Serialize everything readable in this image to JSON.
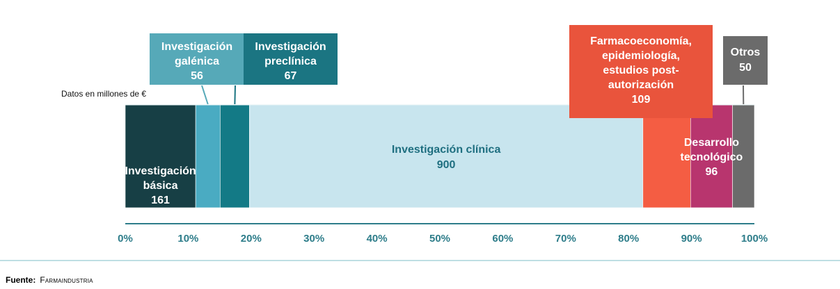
{
  "unit_note": "Datos en millones de €",
  "source": {
    "label": "Fuente:",
    "value": "Farmaindustria"
  },
  "colors": {
    "axis": "#2e7d8a",
    "tick_label": "#2e7d8a",
    "bottom_rule": "#a8d3da",
    "inner_label_light": "#ffffff",
    "inner_label_dark": "#1f6f80"
  },
  "chart_data": {
    "type": "bar",
    "orientation": "horizontal-stacked-100",
    "title": "",
    "xlabel": "",
    "ylabel": "",
    "xlim": [
      0,
      100
    ],
    "ticks": [
      "0%",
      "10%",
      "20%",
      "30%",
      "40%",
      "50%",
      "60%",
      "70%",
      "80%",
      "90%",
      "100%"
    ],
    "grid": false,
    "series": [
      {
        "name": "Investigación básica",
        "lines": [
          "Investigación",
          "básica"
        ],
        "value": 161,
        "color": "#173f45",
        "label_pos": "inside-bottom"
      },
      {
        "name": "Investigación galénica",
        "lines": [
          "Investigación",
          "galénica"
        ],
        "value": 56,
        "color": "#4aabc2",
        "label_pos": "callout",
        "callout_color": "#56a9b8"
      },
      {
        "name": "Investigación preclínica",
        "lines": [
          "Investigación",
          "preclínica"
        ],
        "value": 67,
        "color": "#137a86",
        "label_pos": "callout",
        "callout_color": "#1b7582"
      },
      {
        "name": "Investigación clínica",
        "lines": [
          "Investigación clínica"
        ],
        "value": 900,
        "color": "#c8e5ee",
        "label_pos": "inside",
        "label_color": "#1f6f80"
      },
      {
        "name": "Farmacoeconomía, epidemiología, estudios post-autorización",
        "lines": [
          "Farmacoeconomía,",
          "epidemiología,",
          "estudios post-",
          "autorización"
        ],
        "value": 109,
        "color": "#f45d43",
        "label_pos": "callout",
        "callout_color": "#e9543c"
      },
      {
        "name": "Desarrollo tecnológico",
        "lines": [
          "Desarrollo",
          "tecnológico"
        ],
        "value": 96,
        "color": "#b8356e",
        "label_pos": "inside"
      },
      {
        "name": "Otros",
        "lines": [
          "Otros"
        ],
        "value": 50,
        "color": "#6b6b6b",
        "label_pos": "callout",
        "callout_color": "#6b6b6b"
      }
    ]
  }
}
